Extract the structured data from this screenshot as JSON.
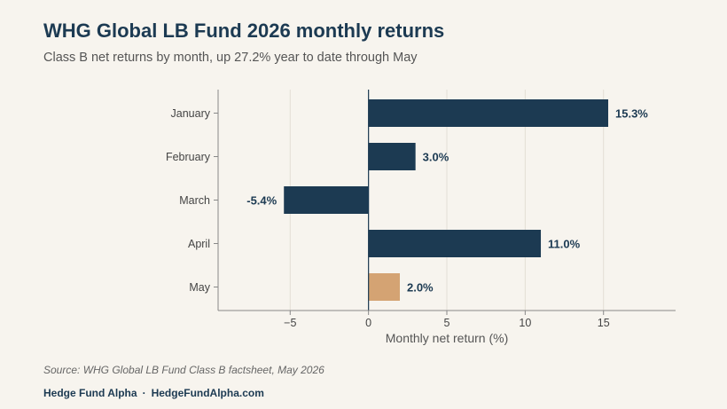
{
  "title": "WHG Global LB Fund 2026 monthly returns",
  "subtitle": "Class B net returns by month, up 27.2% year to date through May",
  "source": "Source: WHG Global LB Fund Class B factsheet, May 2026",
  "footer": {
    "brand": "Hedge Fund Alpha",
    "separator": "·",
    "site": "HedgeFundAlpha.com"
  },
  "colors": {
    "bar": "#1c3a52",
    "highlight": "#d4a373",
    "label": "#1c3a52"
  },
  "chart_data": {
    "type": "bar",
    "orientation": "horizontal",
    "categories": [
      "January",
      "February",
      "March",
      "April",
      "May"
    ],
    "values": [
      15.3,
      3.0,
      -5.4,
      11.0,
      2.0
    ],
    "value_labels": [
      "15.3%",
      "3.0%",
      "-5.4%",
      "11.0%",
      "2.0%"
    ],
    "highlight_category": "May",
    "xlabel": "Monthly net return (%)",
    "xlim": [
      -9.6,
      19.6
    ],
    "xticks": [
      -5,
      0,
      5,
      10,
      15
    ],
    "xtick_labels": [
      "−5",
      "0",
      "5",
      "10",
      "15"
    ],
    "grid": "vertical"
  }
}
